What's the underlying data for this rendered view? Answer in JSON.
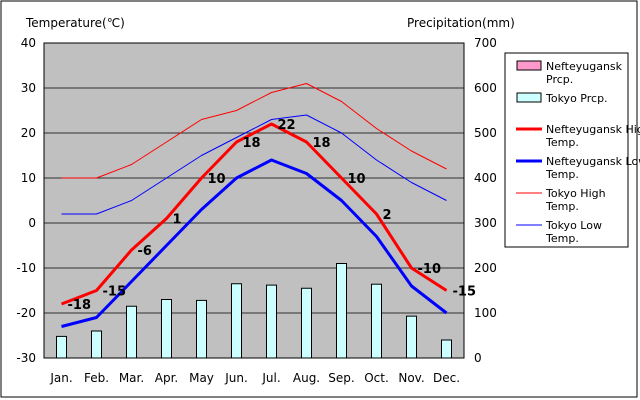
{
  "chart_data": {
    "type": "bar+line",
    "left_axis_title": "Temperature(℃)",
    "right_axis_title": "Precipitation(mm)",
    "categories": [
      "Jan.",
      "Feb.",
      "Mar.",
      "Apr.",
      "May",
      "Jun.",
      "Jul.",
      "Aug.",
      "Sep.",
      "Oct.",
      "Nov.",
      "Dec."
    ],
    "left_ylim": [
      -30,
      40
    ],
    "left_ticks": [
      -30,
      -20,
      -10,
      0,
      10,
      20,
      30,
      40
    ],
    "right_ylim": [
      0,
      700
    ],
    "right_ticks": [
      0,
      100,
      200,
      300,
      400,
      500,
      600,
      700
    ],
    "grid": true,
    "legend_position": "right",
    "bar_series": [
      {
        "name": "Nefteyugansk Prcp.",
        "color": "#ff99cc",
        "values": [
          0,
          0,
          0,
          0,
          0,
          0,
          0,
          0,
          0,
          0,
          0,
          0
        ]
      },
      {
        "name": "Tokyo Prcp.",
        "color": "#ccffff",
        "values": [
          48,
          60,
          115,
          130,
          128,
          165,
          162,
          155,
          210,
          164,
          93,
          40
        ]
      }
    ],
    "line_series": [
      {
        "name": "Nefteyugansk High Temp.",
        "color": "#ff0000",
        "width": 3,
        "values": [
          -18,
          -15,
          -6,
          1,
          10,
          18,
          22,
          18,
          10,
          2,
          -10,
          -15
        ]
      },
      {
        "name": "Nefteyugansk Low Temp.",
        "color": "#0000ff",
        "width": 3,
        "values": [
          -23,
          -21,
          -13,
          -5,
          3,
          10,
          14,
          11,
          5,
          -3,
          -14,
          -20
        ]
      },
      {
        "name": "Tokyo High Temp.",
        "color": "#ff0000",
        "width": 1,
        "values": [
          10,
          10,
          13,
          18,
          23,
          25,
          29,
          31,
          27,
          21,
          16,
          12
        ]
      },
      {
        "name": "Tokyo Low Temp.",
        "color": "#0000ff",
        "width": 1,
        "values": [
          2,
          2,
          5,
          10,
          15,
          19,
          23,
          24,
          20,
          14,
          9,
          5
        ]
      }
    ],
    "data_labels": [
      {
        "month": "Jan.",
        "text": "-18",
        "value": -18
      },
      {
        "month": "Feb.",
        "text": "-15",
        "value": -15
      },
      {
        "month": "Mar.",
        "text": "-6",
        "value": -6
      },
      {
        "month": "Apr.",
        "text": "1",
        "value": 1
      },
      {
        "month": "May",
        "text": "10",
        "value": 10
      },
      {
        "month": "Jun.",
        "text": "18",
        "value": 18
      },
      {
        "month": "Jul.",
        "text": "22",
        "value": 22
      },
      {
        "month": "Aug.",
        "text": "18",
        "value": 18
      },
      {
        "month": "Sep.",
        "text": "10",
        "value": 10
      },
      {
        "month": "Oct.",
        "text": "2",
        "value": 2
      },
      {
        "month": "Nov.",
        "text": "-10",
        "value": -10
      },
      {
        "month": "Dec.",
        "text": "-15",
        "value": -15
      }
    ],
    "legend": [
      {
        "label": "Nefteyugansk Prcp.",
        "kind": "box",
        "color": "#ff99cc"
      },
      {
        "label": "Tokyo Prcp.",
        "kind": "box",
        "color": "#ccffff"
      },
      {
        "label": "Nefteyugansk High Temp.",
        "kind": "line",
        "color": "#ff0000",
        "width": 3
      },
      {
        "label": "Nefteyugansk Low Temp.",
        "kind": "line",
        "color": "#0000ff",
        "width": 3
      },
      {
        "label": "Tokyo High Temp.",
        "kind": "line",
        "color": "#ff0000",
        "width": 1
      },
      {
        "label": "Tokyo Low Temp.",
        "kind": "line",
        "color": "#0000ff",
        "width": 1
      }
    ]
  }
}
